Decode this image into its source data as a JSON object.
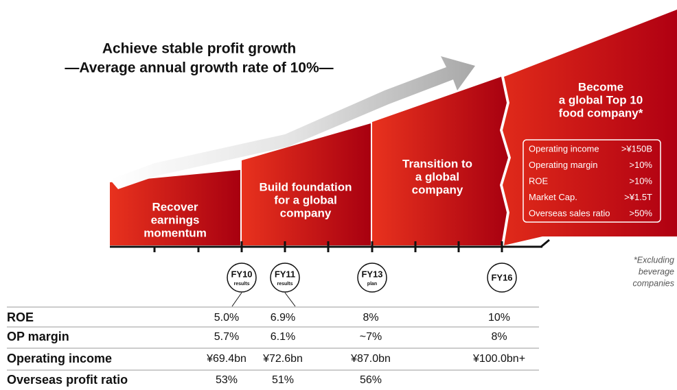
{
  "headline": {
    "line1": "Achieve stable profit growth",
    "line2": "—Average annual growth rate of 10%—"
  },
  "stages": [
    {
      "lines": [
        "Recover",
        "earnings",
        "momentum"
      ]
    },
    {
      "lines": [
        "Build foundation",
        "for a global",
        "company"
      ]
    },
    {
      "lines": [
        "Transition to",
        "a global",
        "company"
      ]
    },
    {
      "lines": [
        "Become",
        "a global Top 10",
        "food company*"
      ]
    }
  ],
  "targets": [
    {
      "label": "Operating income",
      "value": ">¥150B"
    },
    {
      "label": "Operating margin",
      "value": ">10%"
    },
    {
      "label": "ROE",
      "value": ">10%"
    },
    {
      "label": "Market Cap.",
      "value": ">¥1.5T"
    },
    {
      "label": "Overseas sales ratio",
      "value": ">50%"
    }
  ],
  "milestones": [
    {
      "label": "FY10",
      "sub": "results"
    },
    {
      "label": "FY11",
      "sub": "results"
    },
    {
      "label": "FY13",
      "sub": "plan"
    },
    {
      "label": "FY16"
    }
  ],
  "footnote": [
    "*Excluding",
    "beverage",
    "companies"
  ],
  "table": {
    "rows": [
      {
        "label": "ROE",
        "values": [
          "5.0%",
          "6.9%",
          "8%",
          "10%"
        ]
      },
      {
        "label": "OP margin",
        "values": [
          "5.7%",
          "6.1%",
          "~7%",
          "8%"
        ]
      },
      {
        "label": "Operating income",
        "values": [
          "¥69.4bn",
          "¥72.6bn",
          "¥87.0bn",
          "¥100.0bn+"
        ]
      },
      {
        "label": "Overseas profit ratio",
        "values": [
          "53%",
          "51%",
          "56%"
        ]
      }
    ]
  }
}
